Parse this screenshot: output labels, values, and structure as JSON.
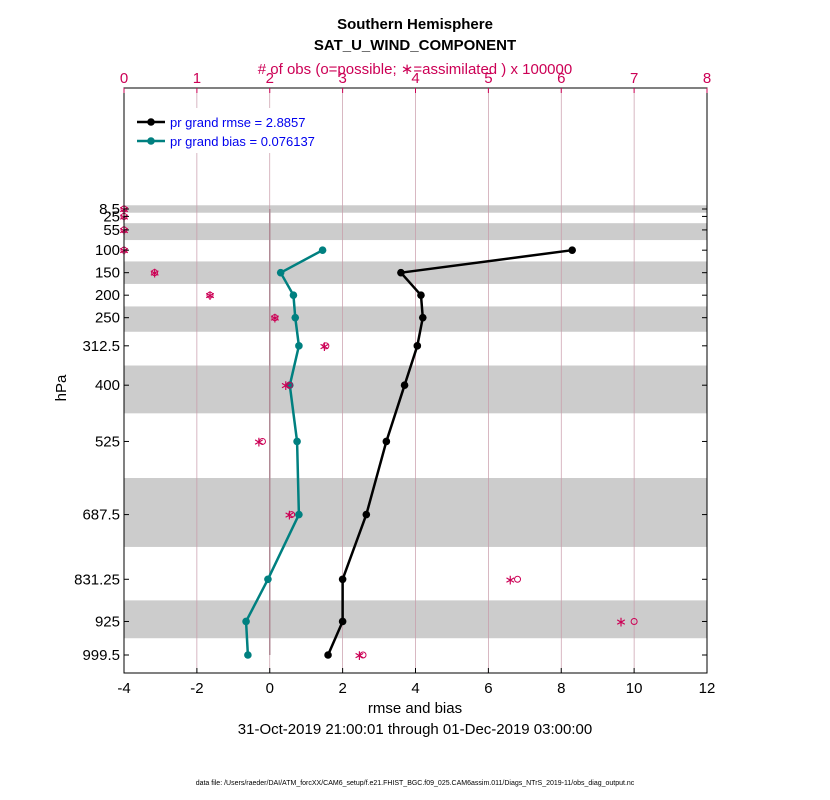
{
  "chart_data": {
    "type": "line",
    "title": "Southern Hemisphere",
    "subtitle": "SAT_U_WIND_COMPONENT",
    "top_axis_label": "# of obs (o=possible; ∗=assimilated ) x 100000",
    "xlabel": "rmse and bias",
    "ylabel": "hPa",
    "date_range": "31-Oct-2019 21:00:01 through 01-Dec-2019 03:00:00",
    "footer": "data file: /Users/raeder/DAI/ATM_forcXX/CAM6_setup/f.e21.FHIST_BGC.f09_025.CAM6assim.011/Diags_NTrS_2019-11/obs_diag_output.nc",
    "xlim": [
      -4,
      12
    ],
    "x_ticks": [
      "-4",
      "-2",
      "0",
      "2",
      "4",
      "6",
      "8",
      "10",
      "12"
    ],
    "top_xlim": [
      0,
      8
    ],
    "top_ticks": [
      "0",
      "1",
      "2",
      "3",
      "4",
      "5",
      "6",
      "7",
      "8"
    ],
    "levels": [
      8.5,
      25,
      55,
      100,
      150,
      200,
      250,
      312.5,
      400,
      525,
      687.5,
      831.25,
      925,
      999.5
    ],
    "level_labels": [
      "8.5",
      "25",
      "55",
      "100",
      "150",
      "200",
      "250",
      "312.5",
      "400",
      "525",
      "687.5",
      "831.25",
      "925",
      "999.5"
    ],
    "series": [
      {
        "name": "rmse",
        "legend": "pr grand rmse = 2.8857",
        "color": "#000000",
        "points": [
          {
            "level": 100,
            "value": 8.3
          },
          {
            "level": 150,
            "value": 3.6
          },
          {
            "level": 200,
            "value": 4.15
          },
          {
            "level": 250,
            "value": 4.2
          },
          {
            "level": 312.5,
            "value": 4.05
          },
          {
            "level": 400,
            "value": 3.7
          },
          {
            "level": 525,
            "value": 3.2
          },
          {
            "level": 687.5,
            "value": 2.65
          },
          {
            "level": 831.25,
            "value": 2.0
          },
          {
            "level": 925,
            "value": 2.0
          },
          {
            "level": 999.5,
            "value": 1.6
          }
        ]
      },
      {
        "name": "bias",
        "legend": "pr grand bias = 0.076137",
        "color": "#008080",
        "points": [
          {
            "level": 100,
            "value": 1.45
          },
          {
            "level": 150,
            "value": 0.3
          },
          {
            "level": 200,
            "value": 0.65
          },
          {
            "level": 250,
            "value": 0.7
          },
          {
            "level": 312.5,
            "value": 0.8
          },
          {
            "level": 400,
            "value": 0.55
          },
          {
            "level": 525,
            "value": 0.75
          },
          {
            "level": 687.5,
            "value": 0.8
          },
          {
            "level": 831.25,
            "value": -0.05
          },
          {
            "level": 925,
            "value": -0.65
          },
          {
            "level": 999.5,
            "value": -0.6
          }
        ]
      }
    ],
    "obs_counts": {
      "unit": "x 100000",
      "possible": [
        {
          "level": 8.5,
          "value": 0.0
        },
        {
          "level": 25,
          "value": 0.0
        },
        {
          "level": 55,
          "value": 0.0
        },
        {
          "level": 100,
          "value": 0.0
        },
        {
          "level": 150,
          "value": 0.42
        },
        {
          "level": 200,
          "value": 1.18
        },
        {
          "level": 250,
          "value": 2.07
        },
        {
          "level": 312.5,
          "value": 2.77
        },
        {
          "level": 400,
          "value": 2.27
        },
        {
          "level": 525,
          "value": 1.9
        },
        {
          "level": 687.5,
          "value": 2.3
        },
        {
          "level": 831.25,
          "value": 5.4
        },
        {
          "level": 925,
          "value": 7.0
        },
        {
          "level": 999.5,
          "value": 3.28
        }
      ],
      "assimilated": [
        {
          "level": 8.5,
          "value": 0.0
        },
        {
          "level": 25,
          "value": 0.0
        },
        {
          "level": 55,
          "value": 0.0
        },
        {
          "level": 100,
          "value": 0.0
        },
        {
          "level": 150,
          "value": 0.42
        },
        {
          "level": 200,
          "value": 1.18
        },
        {
          "level": 250,
          "value": 2.07
        },
        {
          "level": 312.5,
          "value": 2.75
        },
        {
          "level": 400,
          "value": 2.22
        },
        {
          "level": 525,
          "value": 1.85
        },
        {
          "level": 687.5,
          "value": 2.27
        },
        {
          "level": 831.25,
          "value": 5.3
        },
        {
          "level": 925,
          "value": 6.82
        },
        {
          "level": 999.5,
          "value": 3.23
        }
      ]
    },
    "grid": true,
    "legend_position": "top-left"
  }
}
